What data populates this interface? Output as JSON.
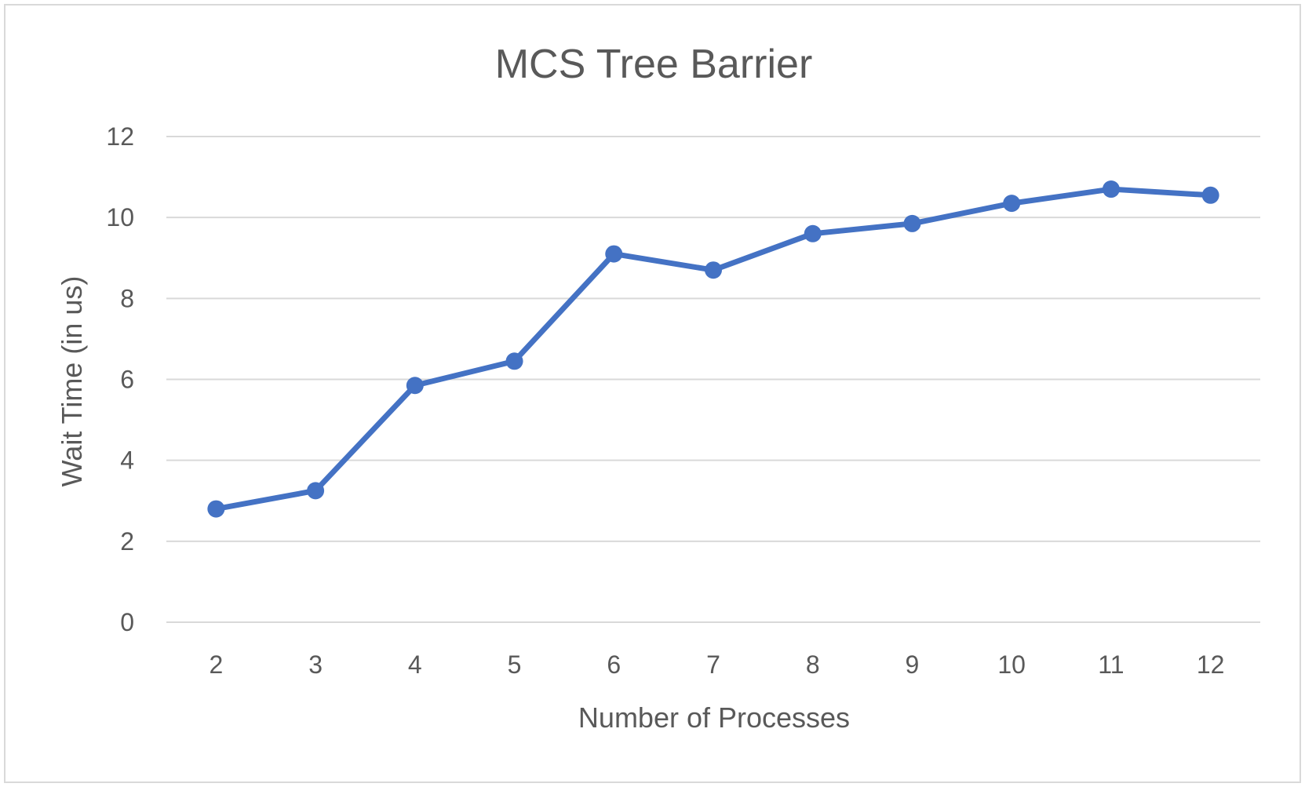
{
  "chart_data": {
    "type": "line",
    "title": "MCS Tree Barrier",
    "xlabel": "Number of Processes",
    "ylabel": "Wait Time (in us)",
    "categories": [
      "2",
      "3",
      "4",
      "5",
      "6",
      "7",
      "8",
      "9",
      "10",
      "11",
      "12"
    ],
    "series": [
      {
        "values": [
          2.8,
          3.25,
          5.85,
          6.45,
          9.1,
          8.7,
          9.6,
          9.85,
          10.35,
          10.7,
          10.55
        ],
        "color": "#4472c4"
      }
    ],
    "ylim": [
      0,
      12
    ],
    "yticks": [
      "0",
      "2",
      "4",
      "6",
      "8",
      "10",
      "12"
    ],
    "grid": true,
    "legend": "none"
  }
}
